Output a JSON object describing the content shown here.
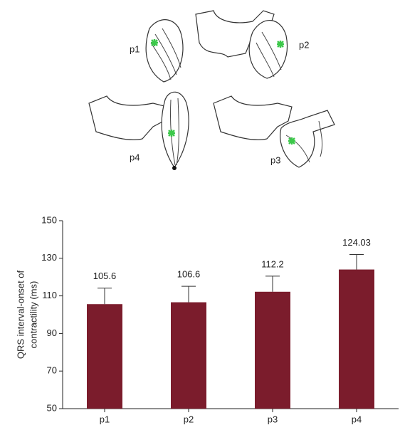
{
  "illustration": {
    "labels": [
      "p1",
      "p2",
      "p4",
      "p3"
    ]
  },
  "chart_data": {
    "type": "bar",
    "ylabel": [
      "QRS interval-onset of",
      "contractility (ms)"
    ],
    "categories": [
      "p1",
      "p2",
      "p3",
      "p4"
    ],
    "values": [
      105.6,
      106.6,
      112.2,
      124.03
    ],
    "errors": [
      8.5,
      8.5,
      8.3,
      8
    ],
    "color": "#7b1c2c",
    "ylim": [
      50,
      150
    ],
    "yticks": [
      50,
      70,
      90,
      110,
      130,
      150
    ]
  }
}
